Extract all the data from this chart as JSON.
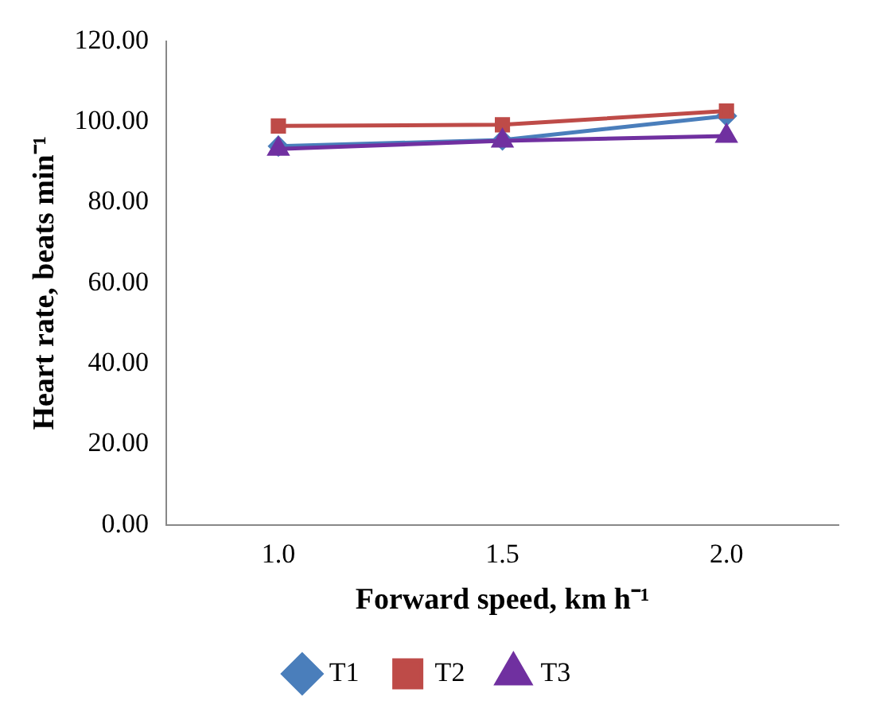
{
  "chart_data": {
    "type": "line",
    "xlabel": "Forward speed, km h⁻¹",
    "ylabel": "Heart rate, beats min⁻¹",
    "categories": [
      "1.0",
      "1.5",
      "2.0"
    ],
    "series": [
      {
        "name": "T1",
        "color": "#4a7ebb",
        "values": [
          94.0,
          95.5,
          101.5
        ],
        "marker": "diamond"
      },
      {
        "name": "T2",
        "color": "#be4b48",
        "values": [
          99.0,
          99.3,
          102.7
        ],
        "marker": "square"
      },
      {
        "name": "T3",
        "color": "#7030a0",
        "values": [
          93.3,
          95.3,
          96.5
        ],
        "marker": "triangle"
      }
    ],
    "ylim": [
      0,
      120
    ],
    "yticks": [
      {
        "value": 0,
        "label": "0.00"
      },
      {
        "value": 20,
        "label": "20.00"
      },
      {
        "value": 40,
        "label": "40.00"
      },
      {
        "value": 60,
        "label": "60.00"
      },
      {
        "value": 80,
        "label": "80.00"
      },
      {
        "value": 100,
        "label": "100.00"
      },
      {
        "value": 120,
        "label": "120.00"
      }
    ],
    "grid": false,
    "legend": "bottom",
    "line_style": "solid"
  }
}
